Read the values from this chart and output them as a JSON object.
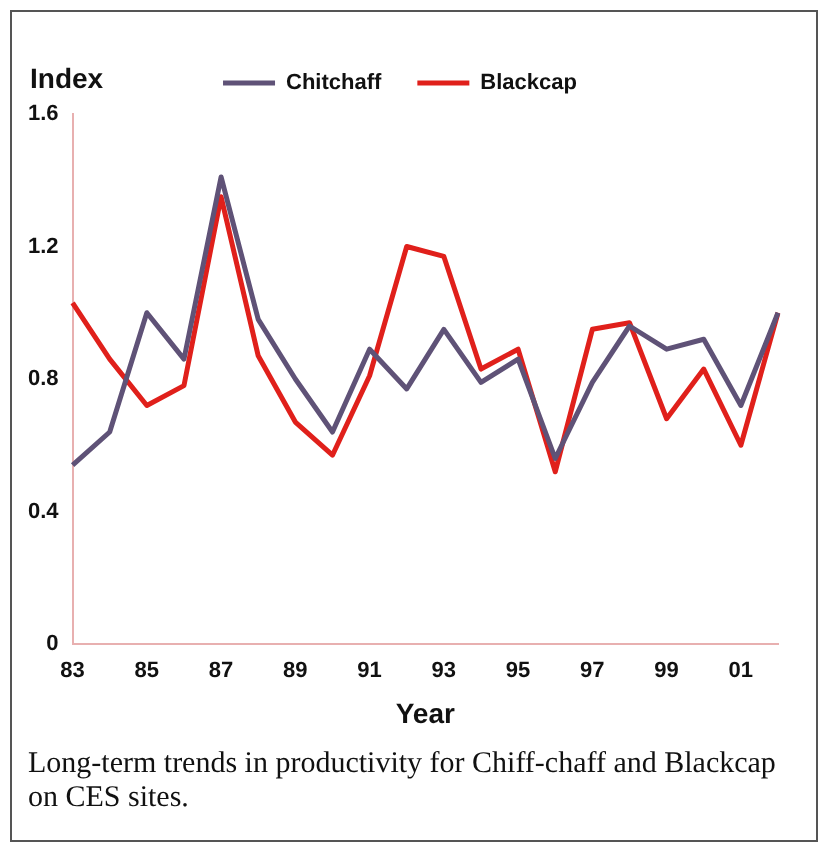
{
  "chart_data": {
    "type": "line",
    "ylabel": "Index",
    "xlabel": "Year",
    "categories": [
      "83",
      null,
      "85",
      null,
      "87",
      null,
      "89",
      null,
      "91",
      null,
      "93",
      null,
      "95",
      null,
      "97",
      null,
      "99",
      null,
      "01",
      null
    ],
    "series": [
      {
        "name": "Chitchaff",
        "color": "#5f5277",
        "values": [
          0.54,
          0.64,
          1.0,
          0.86,
          1.41,
          0.98,
          0.8,
          0.64,
          0.89,
          0.77,
          0.95,
          0.79,
          0.86,
          0.56,
          0.79,
          0.96,
          0.89,
          0.92,
          0.72,
          1.0
        ]
      },
      {
        "name": "Blackcap",
        "color": "#e0201b",
        "values": [
          1.03,
          0.86,
          0.72,
          0.78,
          1.35,
          0.87,
          0.67,
          0.57,
          0.81,
          1.2,
          1.17,
          0.83,
          0.89,
          0.52,
          0.95,
          0.97,
          0.68,
          0.83,
          0.6,
          1.0
        ]
      }
    ],
    "ylim": [
      0,
      1.6
    ],
    "yticks": [
      0,
      0.4,
      0.8,
      1.2,
      1.6
    ],
    "grid": false,
    "legend": "top",
    "marker": "none",
    "line_style": "solid",
    "annotations": [
      "Long-term trends in productivity for Chiff-chaff and Blackcap on CES sites."
    ]
  }
}
